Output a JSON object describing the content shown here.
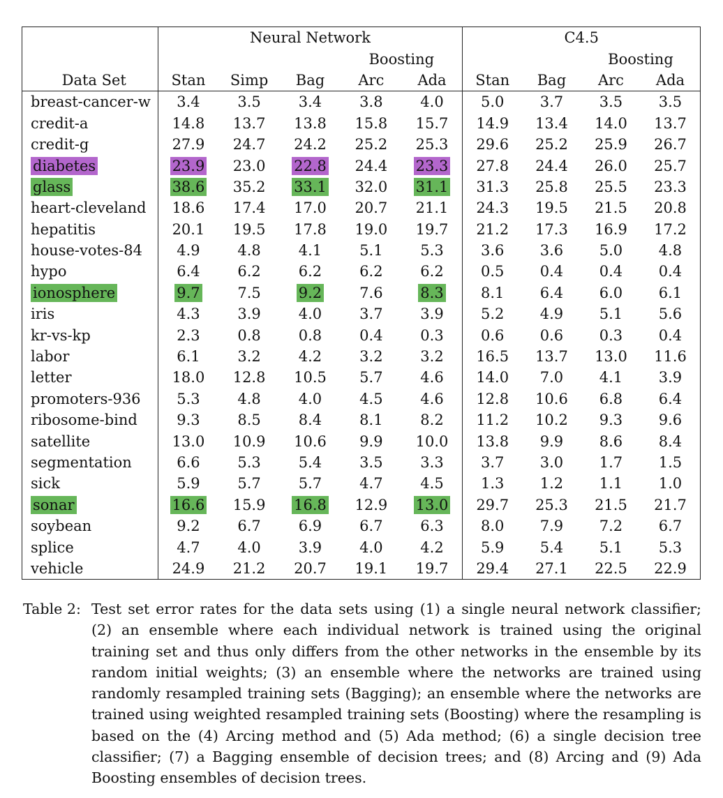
{
  "table": {
    "groups": {
      "neural_network": "Neural Network",
      "c45": "C4.5",
      "boosting_nn": "Boosting",
      "boosting_c45": "Boosting"
    },
    "columns": [
      "Data Set",
      "Stan",
      "Simp",
      "Bag",
      "Arc",
      "Ada",
      "Stan",
      "Bag",
      "Arc",
      "Ada"
    ],
    "rows": [
      {
        "name": "breast-cancer-w",
        "values": [
          "3.4",
          "3.5",
          "3.4",
          "3.8",
          "4.0",
          "5.0",
          "3.7",
          "3.5",
          "3.5"
        ]
      },
      {
        "name": "credit-a",
        "values": [
          "14.8",
          "13.7",
          "13.8",
          "15.8",
          "15.7",
          "14.9",
          "13.4",
          "14.0",
          "13.7"
        ]
      },
      {
        "name": "credit-g",
        "values": [
          "27.9",
          "24.7",
          "24.2",
          "25.2",
          "25.3",
          "29.6",
          "25.2",
          "25.9",
          "26.7"
        ]
      },
      {
        "name": "diabetes",
        "values": [
          "23.9",
          "23.0",
          "22.8",
          "24.4",
          "23.3",
          "27.8",
          "24.4",
          "26.0",
          "25.7"
        ]
      },
      {
        "name": "glass",
        "values": [
          "38.6",
          "35.2",
          "33.1",
          "32.0",
          "31.1",
          "31.3",
          "25.8",
          "25.5",
          "23.3"
        ]
      },
      {
        "name": "heart-cleveland",
        "values": [
          "18.6",
          "17.4",
          "17.0",
          "20.7",
          "21.1",
          "24.3",
          "19.5",
          "21.5",
          "20.8"
        ]
      },
      {
        "name": "hepatitis",
        "values": [
          "20.1",
          "19.5",
          "17.8",
          "19.0",
          "19.7",
          "21.2",
          "17.3",
          "16.9",
          "17.2"
        ]
      },
      {
        "name": "house-votes-84",
        "values": [
          "4.9",
          "4.8",
          "4.1",
          "5.1",
          "5.3",
          "3.6",
          "3.6",
          "5.0",
          "4.8"
        ]
      },
      {
        "name": "hypo",
        "values": [
          "6.4",
          "6.2",
          "6.2",
          "6.2",
          "6.2",
          "0.5",
          "0.4",
          "0.4",
          "0.4"
        ]
      },
      {
        "name": "ionosphere",
        "values": [
          "9.7",
          "7.5",
          "9.2",
          "7.6",
          "8.3",
          "8.1",
          "6.4",
          "6.0",
          "6.1"
        ]
      },
      {
        "name": "iris",
        "values": [
          "4.3",
          "3.9",
          "4.0",
          "3.7",
          "3.9",
          "5.2",
          "4.9",
          "5.1",
          "5.6"
        ]
      },
      {
        "name": "kr-vs-kp",
        "values": [
          "2.3",
          "0.8",
          "0.8",
          "0.4",
          "0.3",
          "0.6",
          "0.6",
          "0.3",
          "0.4"
        ]
      },
      {
        "name": "labor",
        "values": [
          "6.1",
          "3.2",
          "4.2",
          "3.2",
          "3.2",
          "16.5",
          "13.7",
          "13.0",
          "11.6"
        ]
      },
      {
        "name": "letter",
        "values": [
          "18.0",
          "12.8",
          "10.5",
          "5.7",
          "4.6",
          "14.0",
          "7.0",
          "4.1",
          "3.9"
        ]
      },
      {
        "name": "promoters-936",
        "values": [
          "5.3",
          "4.8",
          "4.0",
          "4.5",
          "4.6",
          "12.8",
          "10.6",
          "6.8",
          "6.4"
        ]
      },
      {
        "name": "ribosome-bind",
        "values": [
          "9.3",
          "8.5",
          "8.4",
          "8.1",
          "8.2",
          "11.2",
          "10.2",
          "9.3",
          "9.6"
        ]
      },
      {
        "name": "satellite",
        "values": [
          "13.0",
          "10.9",
          "10.6",
          "9.9",
          "10.0",
          "13.8",
          "9.9",
          "8.6",
          "8.4"
        ]
      },
      {
        "name": "segmentation",
        "values": [
          "6.6",
          "5.3",
          "5.4",
          "3.5",
          "3.3",
          "3.7",
          "3.0",
          "1.7",
          "1.5"
        ]
      },
      {
        "name": "sick",
        "values": [
          "5.9",
          "5.7",
          "5.7",
          "4.7",
          "4.5",
          "1.3",
          "1.2",
          "1.1",
          "1.0"
        ]
      },
      {
        "name": "sonar",
        "values": [
          "16.6",
          "15.9",
          "16.8",
          "12.9",
          "13.0",
          "29.7",
          "25.3",
          "21.5",
          "21.7"
        ]
      },
      {
        "name": "soybean",
        "values": [
          "9.2",
          "6.7",
          "6.9",
          "6.7",
          "6.3",
          "8.0",
          "7.9",
          "7.2",
          "6.7"
        ]
      },
      {
        "name": "splice",
        "values": [
          "4.7",
          "4.0",
          "3.9",
          "4.0",
          "4.2",
          "5.9",
          "5.4",
          "5.1",
          "5.3"
        ]
      },
      {
        "name": "vehicle",
        "values": [
          "24.9",
          "21.2",
          "20.7",
          "19.1",
          "19.7",
          "29.4",
          "27.1",
          "22.5",
          "22.9"
        ]
      }
    ],
    "highlights": [
      {
        "row": "diabetes",
        "color": "#b366cc",
        "cells": [
          0,
          2,
          4
        ]
      },
      {
        "row": "glass",
        "color": "#66b659",
        "cells": [
          0,
          2,
          4
        ]
      },
      {
        "row": "ionosphere",
        "color": "#66b659",
        "cells": [
          0,
          2,
          4
        ]
      },
      {
        "row": "sonar",
        "color": "#66b659",
        "cells": [
          0,
          2,
          4
        ]
      }
    ]
  },
  "caption": {
    "label": "Table 2:",
    "text": "Test set error rates for the data sets using (1) a single neural network classifier; (2) an ensemble where each individual network is trained using the original training set and thus only differs from the other networks in the ensemble by its random initial weights; (3) an ensemble where the networks are trained using randomly resampled training sets (Bagging); an ensemble where the networks are trained using weighted resampled training sets (Boosting) where the resampling is based on the (4) Arcing method and (5) Ada method; (6) a single decision tree classifier; (7) a Bagging ensemble of decision trees; and (8) Arcing and (9) Ada Boosting ensembles of decision trees."
  }
}
